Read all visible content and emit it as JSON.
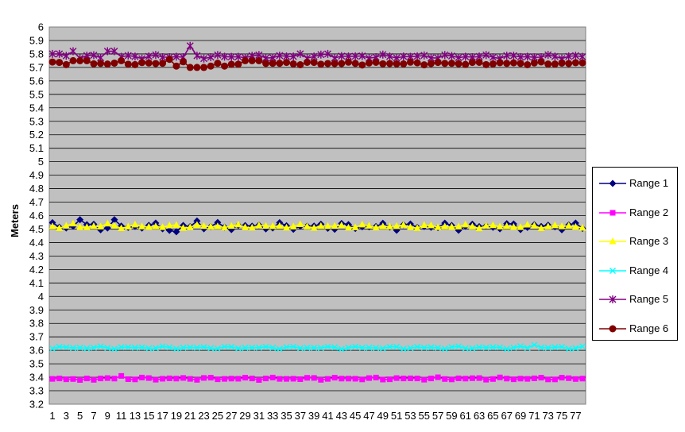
{
  "chart_data": {
    "type": "line",
    "title": "",
    "xlabel": "",
    "ylabel": "Meters",
    "ylim": [
      3.2,
      6
    ],
    "ytick_step": 0.1,
    "x_count": 78,
    "x_tick_labels": [
      "1",
      "3",
      "5",
      "7",
      "9",
      "11",
      "13",
      "15",
      "17",
      "19",
      "21",
      "23",
      "25",
      "27",
      "29",
      "31",
      "33",
      "35",
      "37",
      "39",
      "41",
      "43",
      "45",
      "47",
      "49",
      "51",
      "53",
      "55",
      "57",
      "59",
      "61",
      "63",
      "65",
      "67",
      "69",
      "71",
      "73",
      "75",
      "77"
    ],
    "grid": true,
    "legend_position": "right",
    "plot_background": "#c0c0c0",
    "series": [
      {
        "name": "Range 1",
        "color": "#000080",
        "marker": "diamond",
        "base": 4.52,
        "amp": 0.03,
        "spikes": {
          "5": 4.57,
          "10": 4.57,
          "18": 4.49,
          "19": 4.48,
          "22": 4.56
        },
        "values": []
      },
      {
        "name": "Range 2",
        "color": "#ff00ff",
        "marker": "square",
        "base": 3.39,
        "amp": 0.01,
        "spikes": {
          "5": 3.38,
          "11": 3.41
        },
        "values": []
      },
      {
        "name": "Range 3",
        "color": "#ffff00",
        "marker": "triangle",
        "base": 4.52,
        "amp": 0.015,
        "spikes": {
          "4": 4.54,
          "9": 4.54
        },
        "values": []
      },
      {
        "name": "Range 4",
        "color": "#00ffff",
        "marker": "x",
        "base": 3.62,
        "amp": 0.01,
        "spikes": {
          "71": 3.64
        },
        "values": []
      },
      {
        "name": "Range 5",
        "color": "#800080",
        "marker": "star",
        "base": 5.78,
        "amp": 0.015,
        "spikes": {
          "1": 5.8,
          "2": 5.8,
          "4": 5.82,
          "9": 5.82,
          "10": 5.82,
          "21": 5.86,
          "37": 5.8,
          "41": 5.8
        },
        "values": []
      },
      {
        "name": "Range 6",
        "color": "#800000",
        "marker": "circle",
        "base": 5.73,
        "amp": 0.012,
        "spikes": {
          "1": 5.74,
          "4": 5.75,
          "5": 5.75,
          "6": 5.75,
          "11": 5.75,
          "18": 5.76,
          "19": 5.71,
          "21": 5.7,
          "22": 5.7,
          "23": 5.7,
          "24": 5.71,
          "26": 5.71,
          "29": 5.75,
          "30": 5.75,
          "31": 5.75
        },
        "values": []
      }
    ]
  }
}
